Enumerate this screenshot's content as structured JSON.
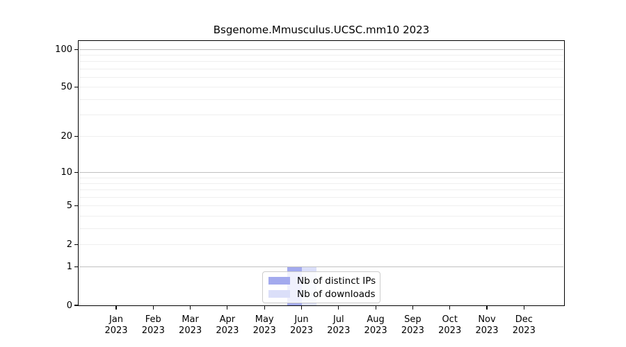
{
  "chart_data": {
    "type": "bar",
    "title": "Bsgenome.Mmusculus.UCSC.mm10 2023",
    "xlabel": "",
    "ylabel": "",
    "year": "2023",
    "categories": [
      "Jan",
      "Feb",
      "Mar",
      "Apr",
      "May",
      "Jun",
      "Jul",
      "Aug",
      "Sep",
      "Oct",
      "Nov",
      "Dec"
    ],
    "series": [
      {
        "name": "Nb of distinct IPs",
        "values": [
          0,
          0,
          0,
          0,
          0,
          1,
          0,
          0,
          0,
          0,
          0,
          0
        ],
        "color": "#a3aaee"
      },
      {
        "name": "Nb of downloads",
        "values": [
          0,
          0,
          0,
          0,
          0,
          1,
          0,
          0,
          0,
          0,
          0,
          0
        ],
        "color": "#dbdff9"
      }
    ],
    "yscale": "log1p",
    "ylim": [
      0,
      117
    ],
    "ytick_values": [
      0,
      1,
      2,
      5,
      10,
      20,
      50,
      100
    ],
    "major_grid_values": [
      1,
      10,
      100
    ],
    "minor_grid_values": [
      2,
      3,
      4,
      5,
      6,
      7,
      8,
      9,
      20,
      30,
      40,
      50,
      60,
      70,
      80,
      90
    ],
    "grid": true,
    "legend_position": "bottom-center"
  },
  "colors": {
    "distinct_ips": "#a3aaee",
    "downloads": "#dbdff9",
    "major_grid": "#c0c0c0",
    "minor_grid": "#efefef",
    "axis": "#000000",
    "legend_border": "#cccccc"
  },
  "legend": {
    "items": [
      {
        "label": "Nb of distinct IPs"
      },
      {
        "label": "Nb of downloads"
      }
    ]
  }
}
